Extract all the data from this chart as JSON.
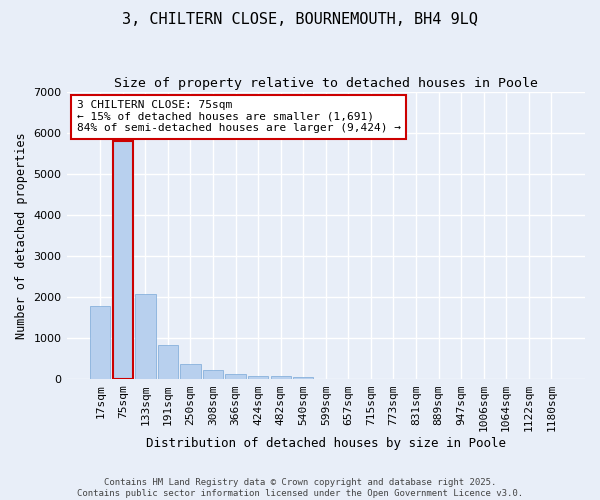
{
  "title1": "3, CHILTERN CLOSE, BOURNEMOUTH, BH4 9LQ",
  "title2": "Size of property relative to detached houses in Poole",
  "xlabel": "Distribution of detached houses by size in Poole",
  "ylabel": "Number of detached properties",
  "categories": [
    "17sqm",
    "75sqm",
    "133sqm",
    "191sqm",
    "250sqm",
    "308sqm",
    "366sqm",
    "424sqm",
    "482sqm",
    "540sqm",
    "599sqm",
    "657sqm",
    "715sqm",
    "773sqm",
    "831sqm",
    "889sqm",
    "947sqm",
    "1006sqm",
    "1064sqm",
    "1122sqm",
    "1180sqm"
  ],
  "values": [
    1780,
    5800,
    2070,
    830,
    370,
    220,
    120,
    80,
    80,
    50,
    20,
    15,
    10,
    5,
    3,
    2,
    1,
    1,
    1,
    1,
    1
  ],
  "highlight_index": 1,
  "bar_color": "#b8d0ee",
  "bar_edge_color": "#7aa8d8",
  "highlight_bar_edge_color": "#cc0000",
  "background_color": "#e8eef8",
  "grid_color": "#ffffff",
  "annotation_box_edge_color": "#cc0000",
  "annotation_text": "3 CHILTERN CLOSE: 75sqm\n← 15% of detached houses are smaller (1,691)\n84% of semi-detached houses are larger (9,424) →",
  "footer_text": "Contains HM Land Registry data © Crown copyright and database right 2025.\nContains public sector information licensed under the Open Government Licence v3.0.",
  "ylim": [
    0,
    7000
  ],
  "yticks": [
    0,
    1000,
    2000,
    3000,
    4000,
    5000,
    6000,
    7000
  ],
  "title1_fontsize": 11,
  "title2_fontsize": 9.5,
  "xlabel_fontsize": 9,
  "ylabel_fontsize": 8.5,
  "tick_fontsize": 8,
  "annotation_fontsize": 8,
  "footer_fontsize": 6.5
}
